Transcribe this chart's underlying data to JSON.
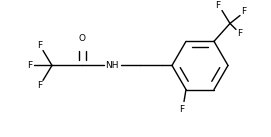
{
  "background": "#ffffff",
  "bond_color": "#000000",
  "text_color": "#000000",
  "figsize": [
    2.71,
    1.37
  ],
  "dpi": 100,
  "lw": 1.0,
  "fontsize": 6.5,
  "xlim": [
    0,
    271
  ],
  "ylim": [
    0,
    137
  ]
}
